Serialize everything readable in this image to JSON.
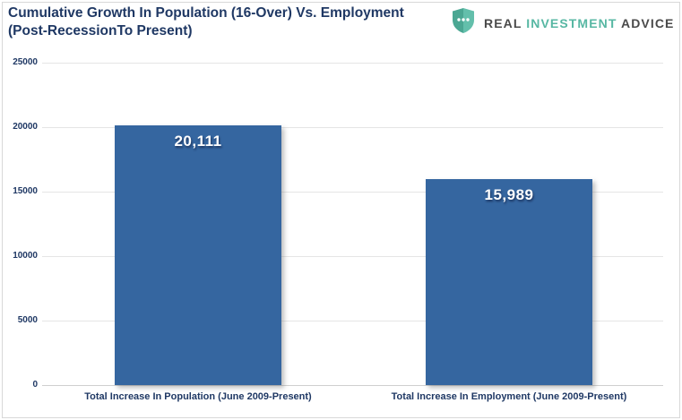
{
  "logo": {
    "icon": "shield-dots-icon",
    "word1": "REAL",
    "word2": "INVESTMENT",
    "word3": "ADVICE",
    "accent_color": "#57B7A3",
    "text_color": "#4A4A4A"
  },
  "chart_data": {
    "type": "bar",
    "title": "Cumulative Growth In Population (16-Over) Vs. Employment (Post-RecessionTo Present)",
    "categories": [
      "Total Increase In Population (June 2009-Present)",
      "Total Increase In Employment (June 2009-Present)"
    ],
    "values": [
      20111,
      15989
    ],
    "value_labels": [
      "20,111",
      "15,989"
    ],
    "xlabel": "",
    "ylabel": "",
    "ylim": [
      0,
      25000
    ],
    "yticks": [
      0,
      5000,
      10000,
      15000,
      20000,
      25000
    ],
    "ytick_labels": [
      "0",
      "5000",
      "10000",
      "15000",
      "20000",
      "25000"
    ],
    "grid": true,
    "legend": "none",
    "bar_color": "#3566A0",
    "bar_value_text_color": "#FFFFFF",
    "title_color": "#1F3864",
    "axis_text_color": "#1F3864",
    "gridline_color": "#E5E5E5",
    "zero_line_color": "#CFCFCF"
  }
}
